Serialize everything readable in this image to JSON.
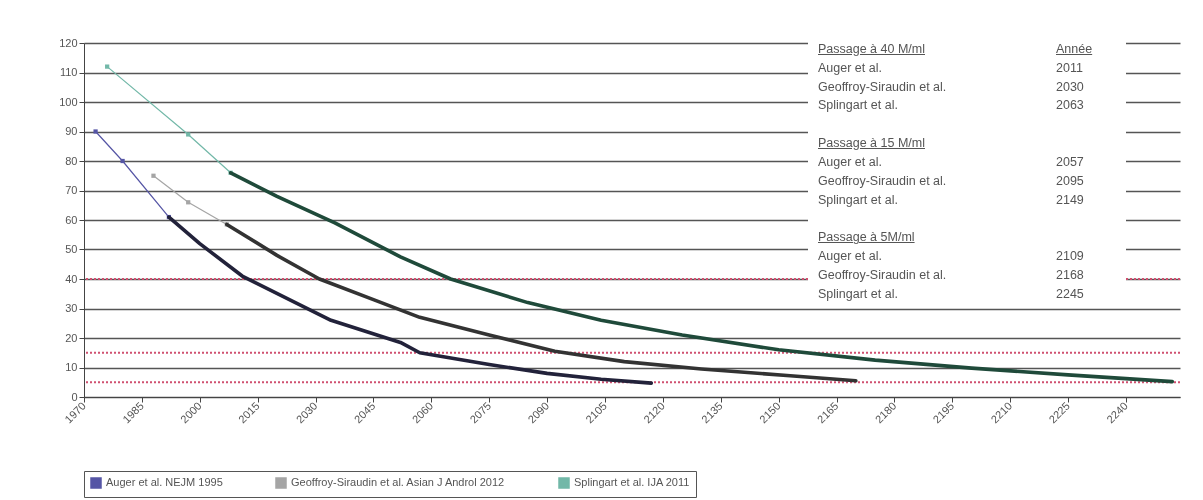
{
  "chart_data": {
    "type": "line",
    "xlim": [
      1970,
      2254
    ],
    "xticks": [
      1970,
      1985,
      2000,
      2015,
      2030,
      2045,
      2060,
      2075,
      2090,
      2105,
      2120,
      2135,
      2150,
      2165,
      2180,
      2195,
      2210,
      2225,
      2240
    ],
    "ylim": [
      0,
      120
    ],
    "yticks": [
      0,
      10,
      20,
      30,
      40,
      50,
      60,
      70,
      80,
      90,
      100,
      110,
      120
    ],
    "grid": "y",
    "legend": "bottom",
    "series": [
      {
        "name": "Auger et al. NEJM 1995",
        "color": "#5555a5",
        "marker": "square",
        "x": [
          1973,
          1980,
          1992
        ],
        "values": [
          90,
          80,
          61
        ]
      },
      {
        "name": "Geoffroy-Siraudin et al. Asian J Androl 2012",
        "color": "#a5a5a5",
        "marker": "square",
        "x": [
          1988,
          1997,
          2007
        ],
        "values": [
          75,
          66,
          58.5
        ]
      },
      {
        "name": "Splingart et al. IJA 2011",
        "color": "#72b8a8",
        "marker": "square",
        "x": [
          1976,
          1997,
          2008
        ],
        "values": [
          112,
          89,
          76
        ]
      },
      {
        "color": "#22223a",
        "x": [
          1992,
          2000,
          2011,
          2034,
          2052,
          2057,
          2075,
          2090,
          2104,
          2117
        ],
        "values": [
          61,
          52,
          41,
          26,
          18.5,
          15,
          11,
          8,
          6,
          4.7
        ]
      },
      {
        "color": "#333333",
        "x": [
          2007,
          2020,
          2031,
          2045,
          2057,
          2075,
          2092,
          2110,
          2130,
          2153,
          2170
        ],
        "values": [
          58.5,
          48,
          40,
          33,
          27,
          21,
          15.5,
          12,
          9.5,
          7.2,
          5.5
        ]
      },
      {
        "color": "#1f4a3a",
        "x": [
          2008,
          2020,
          2035,
          2052,
          2065,
          2085,
          2104,
          2125,
          2150,
          2175,
          2200,
          2225,
          2252
        ],
        "values": [
          76,
          68,
          59,
          47.5,
          40,
          32,
          26,
          21,
          16,
          12.5,
          9.8,
          7.5,
          5.2
        ]
      }
    ],
    "ref_lines": [
      {
        "axis": "y",
        "value": 40,
        "color": "#d05070",
        "line_style": "dotted"
      },
      {
        "axis": "y",
        "value": 15,
        "color": "#d05070",
        "line_style": "dotted"
      },
      {
        "axis": "y",
        "value": 5,
        "color": "#d05070",
        "line_style": "dotted"
      }
    ],
    "annotations": [
      "Passage à 40 M/ml\tAnnée",
      "Auger et al.\t2011",
      "Geoffroy-Siraudin et al.\t2030",
      "Splingart et al.\t2063",
      "Passage à 15 M/ml",
      "Auger et al.\t2057",
      "Geoffroy-Siraudin et al.\t2095",
      "Splingart et al.\t2149",
      "Passage à 5M/ml",
      "Auger et al.\t2109",
      "Geoffroy-Siraudin et al.\t2168",
      "Splingart et al.\t2245"
    ]
  }
}
